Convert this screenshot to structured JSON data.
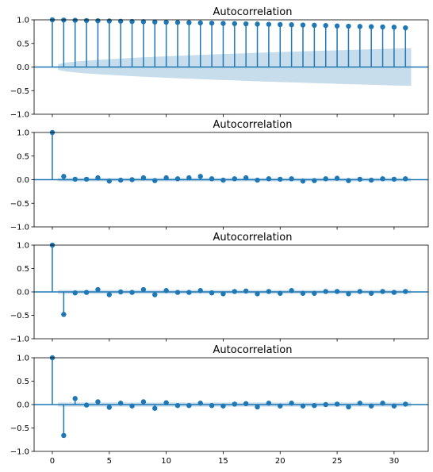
{
  "chart_data": [
    {
      "type": "stem",
      "title": "Autocorrelation",
      "x": [
        0,
        1,
        2,
        3,
        4,
        5,
        6,
        7,
        8,
        9,
        10,
        11,
        12,
        13,
        14,
        15,
        16,
        17,
        18,
        19,
        20,
        21,
        22,
        23,
        24,
        25,
        26,
        27,
        28,
        29,
        30,
        31
      ],
      "values": [
        1.0,
        0.995,
        0.99,
        0.985,
        0.98,
        0.975,
        0.97,
        0.965,
        0.96,
        0.955,
        0.95,
        0.945,
        0.94,
        0.935,
        0.93,
        0.925,
        0.92,
        0.915,
        0.91,
        0.905,
        0.9,
        0.895,
        0.89,
        0.885,
        0.88,
        0.87,
        0.865,
        0.86,
        0.855,
        0.85,
        0.845,
        0.83
      ],
      "conf_band": {
        "x_start": 0.5,
        "x_end": 31.5,
        "half_width_start": 0.06,
        "half_width_end": 0.4
      },
      "ylim": [
        -1,
        1
      ],
      "xlim": [
        -1.6,
        33.0
      ],
      "yticks": [
        "-1.0",
        "-0.5",
        "0.0",
        "0.5",
        "1.0"
      ],
      "xticks": [],
      "grid": false
    },
    {
      "type": "stem",
      "title": "Autocorrelation",
      "x": [
        0,
        1,
        2,
        3,
        4,
        5,
        6,
        7,
        8,
        9,
        10,
        11,
        12,
        13,
        14,
        15,
        16,
        17,
        18,
        19,
        20,
        21,
        22,
        23,
        24,
        25,
        26,
        27,
        28,
        29,
        30,
        31
      ],
      "values": [
        1.0,
        0.07,
        0.01,
        0.01,
        0.04,
        -0.03,
        -0.01,
        0.0,
        0.04,
        -0.02,
        0.04,
        0.02,
        0.04,
        0.07,
        0.02,
        -0.01,
        0.02,
        0.04,
        -0.01,
        0.02,
        0.01,
        0.02,
        -0.03,
        -0.02,
        0.02,
        0.03,
        -0.02,
        0.01,
        -0.01,
        0.02,
        0.01,
        0.02
      ],
      "conf_band": {
        "x_start": 0.5,
        "x_end": 31.5,
        "half_width_start": 0.035,
        "half_width_end": 0.035
      },
      "ylim": [
        -1,
        1
      ],
      "xlim": [
        -1.6,
        33.0
      ],
      "yticks": [
        "-1.0",
        "-0.5",
        "0.0",
        "0.5",
        "1.0"
      ],
      "xticks": [],
      "grid": false
    },
    {
      "type": "stem",
      "title": "Autocorrelation",
      "x": [
        0,
        1,
        2,
        3,
        4,
        5,
        6,
        7,
        8,
        9,
        10,
        11,
        12,
        13,
        14,
        15,
        16,
        17,
        18,
        19,
        20,
        21,
        22,
        23,
        24,
        25,
        26,
        27,
        28,
        29,
        30,
        31
      ],
      "values": [
        1.0,
        -0.48,
        -0.02,
        -0.01,
        0.05,
        -0.06,
        0.0,
        -0.01,
        0.05,
        -0.06,
        0.03,
        -0.01,
        -0.01,
        0.03,
        -0.02,
        -0.04,
        0.01,
        0.02,
        -0.04,
        0.01,
        -0.03,
        0.03,
        -0.03,
        -0.03,
        0.01,
        0.01,
        -0.04,
        0.01,
        -0.03,
        0.01,
        -0.01,
        0.01
      ],
      "conf_band": {
        "x_start": 0.5,
        "x_end": 31.5,
        "half_width_start": 0.04,
        "half_width_end": 0.04
      },
      "ylim": [
        -1,
        1
      ],
      "xlim": [
        -1.6,
        33.0
      ],
      "yticks": [
        "-1.0",
        "-0.5",
        "0.0",
        "0.5",
        "1.0"
      ],
      "xticks": [],
      "grid": false
    },
    {
      "type": "stem",
      "title": "Autocorrelation",
      "x": [
        0,
        1,
        2,
        3,
        4,
        5,
        6,
        7,
        8,
        9,
        10,
        11,
        12,
        13,
        14,
        15,
        16,
        17,
        18,
        19,
        20,
        21,
        22,
        23,
        24,
        25,
        26,
        27,
        28,
        29,
        30,
        31
      ],
      "values": [
        1.0,
        -0.66,
        0.13,
        -0.01,
        0.06,
        -0.06,
        0.03,
        -0.03,
        0.06,
        -0.08,
        0.04,
        -0.02,
        -0.02,
        0.03,
        -0.02,
        -0.03,
        0.01,
        0.02,
        -0.05,
        0.03,
        -0.03,
        0.03,
        -0.03,
        -0.02,
        0.0,
        0.01,
        -0.05,
        0.03,
        -0.03,
        0.03,
        -0.03,
        0.01
      ],
      "conf_band": {
        "x_start": 0.5,
        "x_end": 31.5,
        "half_width_start": 0.045,
        "half_width_end": 0.045
      },
      "ylim": [
        -1,
        1
      ],
      "xlim": [
        -1.6,
        33.0
      ],
      "yticks": [
        "-1.0",
        "-0.5",
        "0.0",
        "0.5",
        "1.0"
      ],
      "xticks": [
        "0",
        "5",
        "10",
        "15",
        "20",
        "25",
        "30"
      ],
      "grid": false
    }
  ],
  "colors": {
    "stem": "#1f77b4",
    "band": "#1f77b4",
    "axis": "#000000",
    "background": "#ffffff"
  }
}
